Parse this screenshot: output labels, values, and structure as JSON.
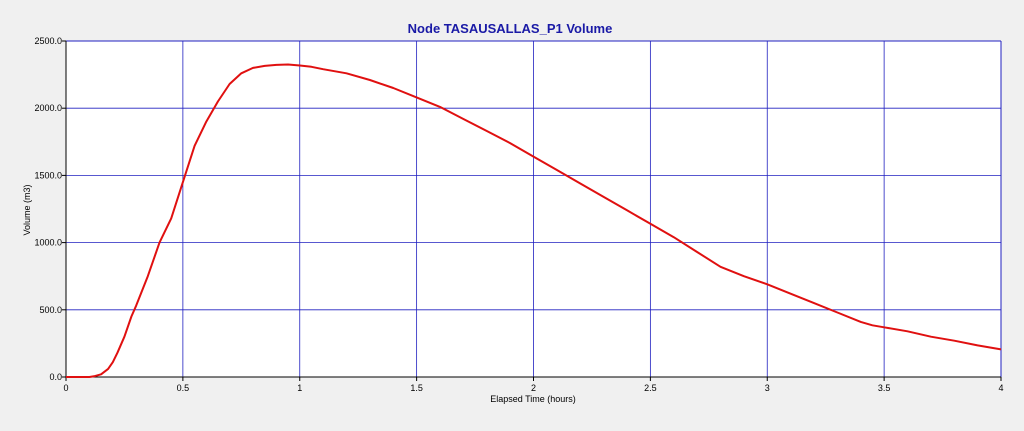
{
  "chart_data": {
    "type": "line",
    "title": "Node TASAUSALLAS_P1 Volume",
    "xlabel": "Elapsed Time (hours)",
    "ylabel": "Volume (m3)",
    "xlim": [
      0,
      4
    ],
    "ylim": [
      0,
      2500
    ],
    "x_ticks": [
      "0",
      "0.5",
      "1",
      "1.5",
      "2",
      "2.5",
      "3",
      "3.5",
      "4"
    ],
    "y_ticks": [
      "0.0",
      "500.0",
      "1000.0",
      "1500.0",
      "2000.0",
      "2500.0"
    ],
    "grid": true,
    "legend": "none",
    "colors": {
      "background": "#f0f0f0",
      "plot_area": "#ffffff",
      "grid": "#2020c0",
      "title": "#1a1aa6",
      "series": "#e01010"
    },
    "series": [
      {
        "name": "",
        "x": [
          0.0,
          0.1,
          0.12,
          0.15,
          0.18,
          0.2,
          0.22,
          0.25,
          0.28,
          0.3,
          0.35,
          0.4,
          0.45,
          0.5,
          0.55,
          0.6,
          0.65,
          0.7,
          0.75,
          0.8,
          0.85,
          0.9,
          0.95,
          1.0,
          1.05,
          1.1,
          1.2,
          1.3,
          1.4,
          1.5,
          1.6,
          1.7,
          1.8,
          1.9,
          2.0,
          2.1,
          2.2,
          2.3,
          2.4,
          2.5,
          2.6,
          2.7,
          2.8,
          2.9,
          3.0,
          3.1,
          3.2,
          3.3,
          3.4,
          3.45,
          3.5,
          3.6,
          3.7,
          3.8,
          3.9,
          4.0
        ],
        "y": [
          0,
          0,
          5,
          20,
          60,
          110,
          180,
          300,
          450,
          530,
          750,
          1000,
          1180,
          1450,
          1720,
          1900,
          2050,
          2180,
          2260,
          2300,
          2315,
          2322,
          2325,
          2318,
          2308,
          2290,
          2260,
          2210,
          2150,
          2080,
          2010,
          1920,
          1830,
          1740,
          1640,
          1540,
          1440,
          1340,
          1240,
          1140,
          1040,
          930,
          820,
          750,
          690,
          620,
          550,
          480,
          410,
          385,
          370,
          340,
          300,
          270,
          235,
          205
        ]
      }
    ]
  }
}
